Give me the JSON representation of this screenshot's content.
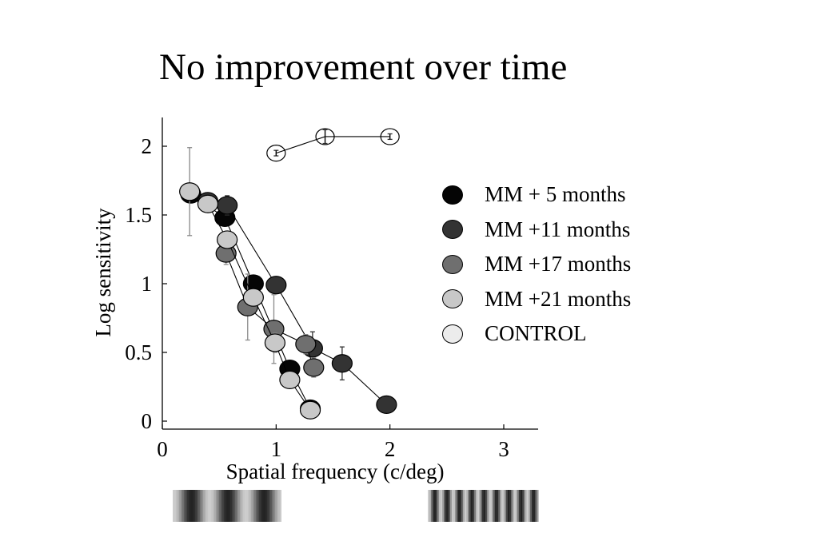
{
  "slide": {
    "title": "No improvement over time"
  },
  "chart_data": {
    "type": "scatter",
    "title": "",
    "xlabel": "Spatial frequency (c/deg)",
    "ylabel": "Log sensitivity",
    "xlim": [
      0,
      3.3
    ],
    "ylim": [
      -0.05,
      2.2
    ],
    "x_ticks": [
      0,
      1,
      2,
      3
    ],
    "x_tick_labels": [
      "0",
      "1",
      "2",
      "3"
    ],
    "y_ticks": [
      0,
      0.5,
      1,
      1.5,
      2
    ],
    "y_tick_labels": [
      "0",
      "0.5",
      "1",
      "1.5",
      "2"
    ],
    "grid": false,
    "legend_position": "right",
    "series": [
      {
        "name": "MM + 5 months",
        "color": "#050505",
        "points": [
          {
            "x": 0.25,
            "y": 1.65,
            "err": 0.05
          },
          {
            "x": 0.55,
            "y": 1.48,
            "err": 0.06
          },
          {
            "x": 0.8,
            "y": 1.0,
            "err": 0.05
          },
          {
            "x": 1.12,
            "y": 0.38,
            "err": 0.05
          },
          {
            "x": 1.3,
            "y": 0.09,
            "err": 0.04
          }
        ]
      },
      {
        "name": "MM +11 months",
        "color": "#333333",
        "points": [
          {
            "x": 0.4,
            "y": 1.6,
            "err": 0.04
          },
          {
            "x": 0.57,
            "y": 1.57,
            "err": 0.07
          },
          {
            "x": 1.0,
            "y": 0.99,
            "err": 0.04
          },
          {
            "x": 1.32,
            "y": 0.53,
            "err": 0.12
          },
          {
            "x": 1.58,
            "y": 0.42,
            "err": 0.12
          },
          {
            "x": 1.97,
            "y": 0.12,
            "err": 0.05
          }
        ]
      },
      {
        "name": "MM +17 months",
        "color": "#6f6f6f",
        "points": [
          {
            "x": 0.56,
            "y": 1.22,
            "err": 0.08
          },
          {
            "x": 0.75,
            "y": 0.83,
            "err": 0.24
          },
          {
            "x": 0.98,
            "y": 0.67,
            "err": 0.25
          },
          {
            "x": 1.26,
            "y": 0.56,
            "err": 0.07
          },
          {
            "x": 1.33,
            "y": 0.39,
            "err": 0.07
          }
        ]
      },
      {
        "name": "MM +21 months",
        "color": "#c8c8c8",
        "points": [
          {
            "x": 0.24,
            "y": 1.67,
            "err": 0.32
          },
          {
            "x": 0.4,
            "y": 1.58,
            "err": 0.05
          },
          {
            "x": 0.57,
            "y": 1.32,
            "err": 0.06
          },
          {
            "x": 0.8,
            "y": 0.9,
            "err": 0.05
          },
          {
            "x": 0.99,
            "y": 0.57,
            "err": 0.07
          },
          {
            "x": 1.12,
            "y": 0.3,
            "err": 0.05
          },
          {
            "x": 1.3,
            "y": 0.08,
            "err": 0.03
          }
        ]
      },
      {
        "name": "CONTROL",
        "color": "#ececec",
        "points": [
          {
            "x": 1.0,
            "y": 1.95,
            "err": 0.02
          },
          {
            "x": 1.43,
            "y": 2.07,
            "err": 0.05
          },
          {
            "x": 2.0,
            "y": 2.07,
            "err": 0.02
          }
        ]
      }
    ]
  },
  "gratings": {
    "low": {
      "cycles": 3
    },
    "high": {
      "cycles": 9
    }
  }
}
